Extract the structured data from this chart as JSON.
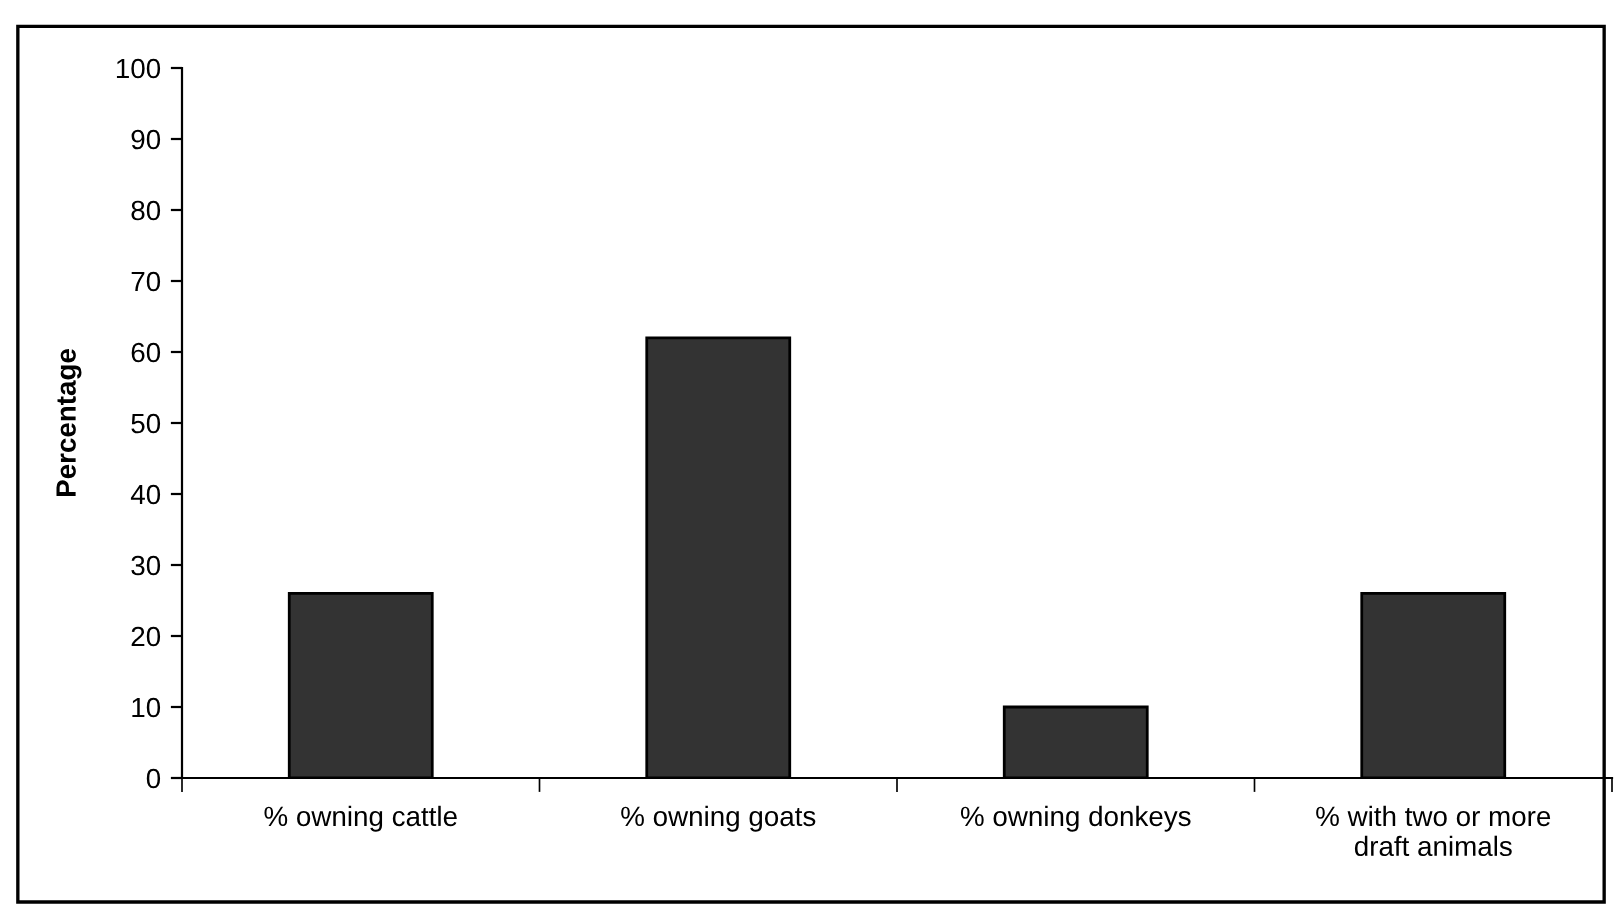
{
  "chart_data": {
    "type": "bar",
    "ylabel": "Percentage",
    "categories": [
      "% owning cattle",
      "% owning goats",
      "% owning donkeys",
      "% with two or more\ndraft animals"
    ],
    "values": [
      26,
      62,
      10,
      26
    ],
    "color": "#333333",
    "ylim": [
      0,
      100
    ],
    "yticks": [
      0,
      10,
      20,
      30,
      40,
      50,
      60,
      70,
      80,
      90,
      100
    ],
    "grid": false
  }
}
